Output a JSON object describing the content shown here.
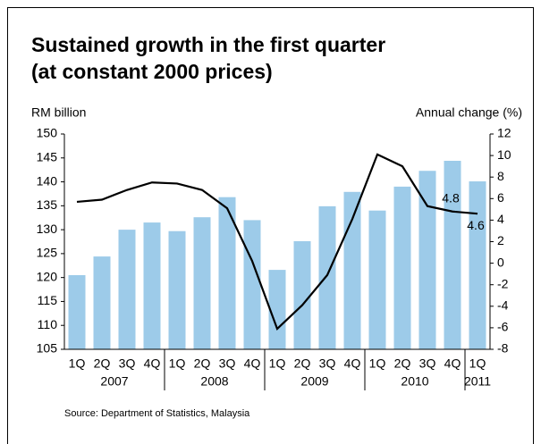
{
  "chart_data": {
    "type": "bar_line",
    "title": "Sustained growth in the first quarter",
    "subtitle": "(at constant 2000 prices)",
    "y_label": "RM billion",
    "y2_label": "Annual change (%)",
    "source": "Source: Department of Statistics, Malaysia",
    "categories": [
      "1Q",
      "2Q",
      "3Q",
      "4Q",
      "1Q",
      "2Q",
      "3Q",
      "4Q",
      "1Q",
      "2Q",
      "3Q",
      "4Q",
      "1Q",
      "2Q",
      "3Q",
      "4Q",
      "1Q"
    ],
    "groups": [
      {
        "label": "2007",
        "count": 4
      },
      {
        "label": "2008",
        "count": 4
      },
      {
        "label": "2009",
        "count": 4
      },
      {
        "label": "2010",
        "count": 4
      },
      {
        "label": "2011",
        "count": 1
      }
    ],
    "series": [
      {
        "type": "bar",
        "axis": "y",
        "color": "#9dcbe9",
        "values": [
          120.5,
          124.4,
          130,
          131.5,
          129.7,
          132.6,
          136.8,
          132,
          121.6,
          127.6,
          134.9,
          137.9,
          134,
          139,
          142.3,
          144.4,
          140.1
        ]
      },
      {
        "type": "line",
        "axis": "y2",
        "color": "#000000",
        "values": [
          5.7,
          5.9,
          6.8,
          7.5,
          7.4,
          6.8,
          5.1,
          0.2,
          -6.1,
          -3.9,
          -1.1,
          4.1,
          10.1,
          9.0,
          5.3,
          4.8,
          4.6
        ],
        "labeled_points": [
          15,
          16
        ]
      }
    ],
    "ylim": [
      105,
      150
    ],
    "yticks": [
      105,
      110,
      115,
      120,
      125,
      130,
      135,
      140,
      145,
      150
    ],
    "y2lim": [
      -8,
      12
    ],
    "y2ticks": [
      -8,
      -6,
      -4,
      -2,
      0,
      2,
      4,
      6,
      8,
      10,
      12
    ]
  }
}
